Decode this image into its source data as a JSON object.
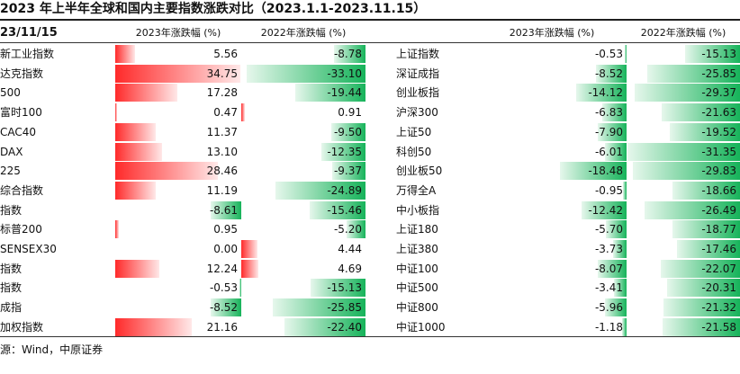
{
  "title": "2023 年上半年全球和国内主要指数涨跌对比（2023.1.1-2023.11.15）",
  "source": "源：Wind，中原证券",
  "colors": {
    "up": "#ff2a2a",
    "down": "#16b35a"
  },
  "chart_data": {
    "type": "table",
    "date_header": "23/11/15",
    "columns": [
      "2023年涨跌幅 (%)",
      "2022年涨跌幅 (%)",
      "2023年涨跌幅 (%)",
      "2022年涨跌幅 (%)"
    ],
    "global": [
      {
        "name": "新工业指数",
        "y2023": 5.56,
        "y2022": -8.78,
        "v2023": "5.56",
        "v2022": "-8.78"
      },
      {
        "name": "达克指数",
        "y2023": 34.75,
        "y2022": -33.1,
        "v2023": "34.75",
        "v2022": "-33.10"
      },
      {
        "name": "500",
        "y2023": 17.28,
        "y2022": -19.44,
        "v2023": "17.28",
        "v2022": "-19.44"
      },
      {
        "name": "富时100",
        "y2023": 0.47,
        "y2022": 0.91,
        "v2023": "0.47",
        "v2022": "0.91"
      },
      {
        "name": "CAC40",
        "y2023": 11.37,
        "y2022": -9.5,
        "v2023": "11.37",
        "v2022": "-9.50"
      },
      {
        "name": "DAX",
        "y2023": 13.1,
        "y2022": -12.35,
        "v2023": "13.10",
        "v2022": "-12.35"
      },
      {
        "name": "225",
        "y2023": 28.46,
        "y2022": -9.37,
        "v2023": "28.46",
        "v2022": "-9.37"
      },
      {
        "name": "综合指数",
        "y2023": 11.19,
        "y2022": -24.89,
        "v2023": "11.19",
        "v2022": "-24.89"
      },
      {
        "name": "指数",
        "y2023": -8.61,
        "y2022": -15.46,
        "v2023": "-8.61",
        "v2022": "-15.46"
      },
      {
        "name": "标普200",
        "y2023": 0.95,
        "y2022": -5.2,
        "v2023": "0.95",
        "v2022": "-5.20"
      },
      {
        "name": "SENSEX30",
        "y2023": 0.0,
        "y2022": 4.44,
        "v2023": "0.00",
        "v2022": "4.44"
      },
      {
        "name": "指数",
        "y2023": 12.24,
        "y2022": 4.69,
        "v2023": "12.24",
        "v2022": "4.69"
      },
      {
        "name": "指数",
        "y2023": -0.53,
        "y2022": -15.13,
        "v2023": "-0.53",
        "v2022": "-15.13"
      },
      {
        "name": "成指",
        "y2023": -8.52,
        "y2022": -25.85,
        "v2023": "-8.52",
        "v2022": "-25.85"
      },
      {
        "name": "加权指数",
        "y2023": 21.16,
        "y2022": -22.4,
        "v2023": "21.16",
        "v2022": "-22.40"
      }
    ],
    "domestic": [
      {
        "name": "上证指数",
        "y2023": -0.53,
        "y2022": -15.13,
        "v2023": "-0.53",
        "v2022": "-15.13"
      },
      {
        "name": "深证成指",
        "y2023": -8.52,
        "y2022": -25.85,
        "v2023": "-8.52",
        "v2022": "-25.85"
      },
      {
        "name": "创业板指",
        "y2023": -14.12,
        "y2022": -29.37,
        "v2023": "-14.12",
        "v2022": "-29.37"
      },
      {
        "name": "沪深300",
        "y2023": -6.83,
        "y2022": -21.63,
        "v2023": "-6.83",
        "v2022": "-21.63"
      },
      {
        "name": "上证50",
        "y2023": -7.9,
        "y2022": -19.52,
        "v2023": "-7.90",
        "v2022": "-19.52"
      },
      {
        "name": "科创50",
        "y2023": -6.01,
        "y2022": -31.35,
        "v2023": "-6.01",
        "v2022": "-31.35"
      },
      {
        "name": "创业板50",
        "y2023": -18.48,
        "y2022": -29.83,
        "v2023": "-18.48",
        "v2022": "-29.83"
      },
      {
        "name": "万得全A",
        "y2023": -0.95,
        "y2022": -18.66,
        "v2023": "-0.95",
        "v2022": "-18.66"
      },
      {
        "name": "中小板指",
        "y2023": -12.42,
        "y2022": -26.49,
        "v2023": "-12.42",
        "v2022": "-26.49"
      },
      {
        "name": "上证180",
        "y2023": -5.7,
        "y2022": -18.77,
        "v2023": "-5.70",
        "v2022": "-18.77"
      },
      {
        "name": "上证380",
        "y2023": -3.73,
        "y2022": -17.46,
        "v2023": "-3.73",
        "v2022": "-17.46"
      },
      {
        "name": "中证100",
        "y2023": -8.07,
        "y2022": -22.07,
        "v2023": "-8.07",
        "v2022": "-22.07"
      },
      {
        "name": "中证500",
        "y2023": -3.41,
        "y2022": -20.31,
        "v2023": "-3.41",
        "v2022": "-20.31"
      },
      {
        "name": "中证800",
        "y2023": -5.96,
        "y2022": -21.32,
        "v2023": "-5.96",
        "v2022": "-21.32"
      },
      {
        "name": "中证1000",
        "y2023": -1.18,
        "y2022": -21.58,
        "v2023": "-1.18",
        "v2022": "-21.58"
      }
    ]
  }
}
